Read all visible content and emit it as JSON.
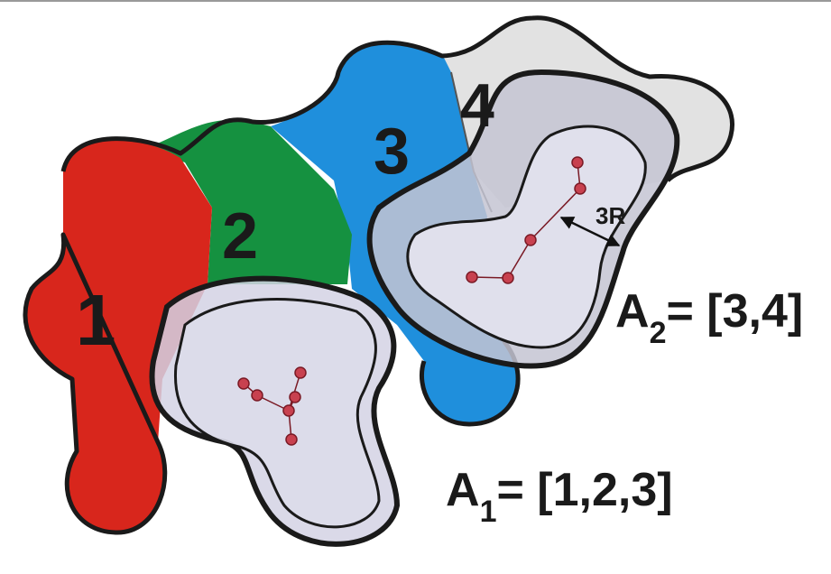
{
  "regions": [
    {
      "label": "1"
    },
    {
      "label": "2"
    },
    {
      "label": "3"
    },
    {
      "label": "4"
    }
  ],
  "distance_label": "3R",
  "assignments": [
    {
      "symbol": "A",
      "subscript": "1",
      "value": "= [1,2,3]"
    },
    {
      "symbol": "A",
      "subscript": "2",
      "value": "= [3,4]"
    }
  ]
}
